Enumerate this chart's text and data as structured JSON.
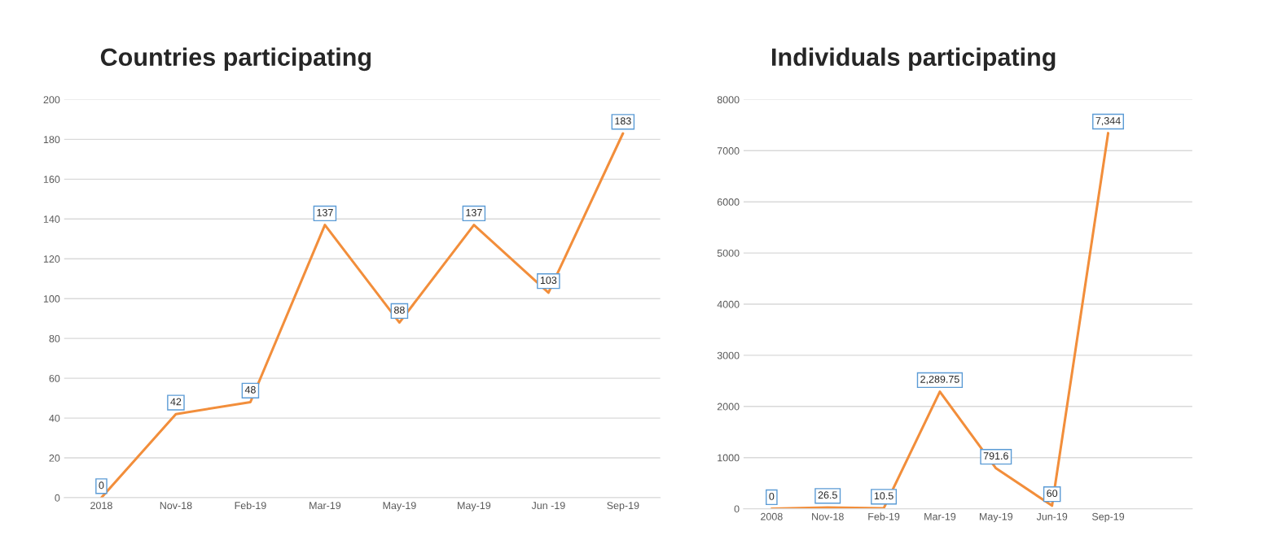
{
  "chart_data": [
    {
      "type": "line",
      "title": "Countries participating",
      "categories": [
        "2018",
        "Nov-18",
        "Feb-19",
        "Mar-19",
        "May-19",
        "May-19",
        "Jun -19",
        "Sep-19"
      ],
      "series": [
        {
          "color": "#f28e3b",
          "values": [
            0,
            42,
            48,
            137,
            88,
            137,
            103,
            183
          ]
        }
      ],
      "data_labels": true,
      "ylim": [
        0,
        200
      ],
      "yticks": [
        0,
        20,
        40,
        60,
        80,
        100,
        120,
        140,
        160,
        180,
        200
      ],
      "grid": "y",
      "legend": false,
      "line_style": "solid"
    },
    {
      "type": "line",
      "title": "Individuals participating",
      "categories": [
        "2008",
        "Nov-18",
        "Feb-19",
        "Mar-19",
        "May-19",
        "Jun-19",
        "Sep-19",
        null
      ],
      "series": [
        {
          "color": "#f28e3b",
          "values": [
            0,
            26.5,
            10.5,
            2289.75,
            791.6,
            60,
            7344,
            null
          ]
        }
      ],
      "value_labels": [
        "0",
        "26.5",
        "10.5",
        "2,289.75",
        "791.6",
        "60",
        "7,344",
        null
      ],
      "ylim": [
        0,
        8000
      ],
      "yticks": [
        0,
        1000,
        2000,
        3000,
        4000,
        5000,
        6000,
        7000,
        8000
      ],
      "grid": "y",
      "legend": false,
      "line_style": "solid"
    }
  ]
}
